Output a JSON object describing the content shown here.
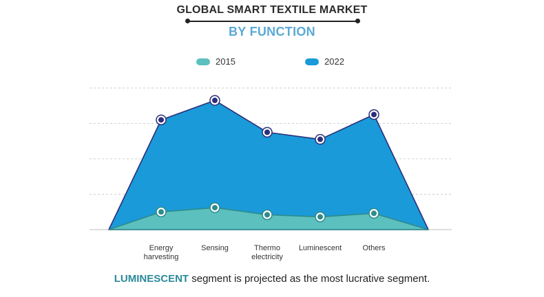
{
  "chart_data": {
    "type": "area",
    "title": "GLOBAL SMART TEXTILE MARKET",
    "subtitle": "BY FUNCTION",
    "categories": [
      "Energy\nharvesting",
      "Sensing",
      "Thermo\nelectricity",
      "Luminescent",
      "Others"
    ],
    "series": [
      {
        "name": "2015",
        "color": "#5bc0be",
        "values": [
          0.5,
          0.62,
          0.42,
          0.36,
          0.46
        ]
      },
      {
        "name": "2022",
        "color": "#1a9ad8",
        "values": [
          3.1,
          3.65,
          2.75,
          2.55,
          3.25
        ]
      }
    ],
    "ylim": [
      0,
      4
    ],
    "grid": true,
    "legend": "top-center"
  },
  "footer": {
    "highlight": "LUMINESCENT",
    "text": " segment is projected as the most lucrative segment."
  }
}
